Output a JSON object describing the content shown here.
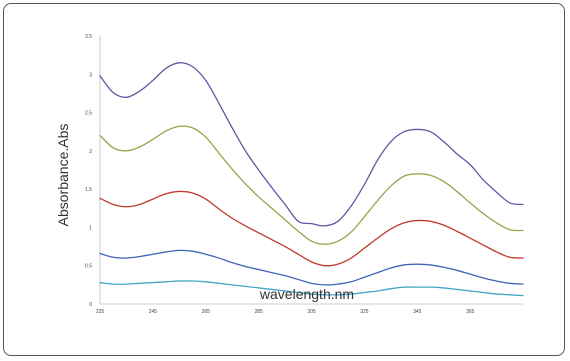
{
  "chart_data": {
    "type": "line",
    "title": "",
    "xlabel": "wavelength.nm",
    "ylabel": "Absorbance.Abs",
    "xlim": [
      225,
      385
    ],
    "ylim": [
      0,
      3.5
    ],
    "x_ticks": [
      "225",
      "245",
      "265",
      "285",
      "305",
      "325",
      "345",
      "365"
    ],
    "y_ticks": [
      "0",
      "0.5",
      "1",
      "1.5",
      "2",
      "2.5",
      "3",
      "3.5"
    ],
    "grid": false,
    "x": [
      225,
      230,
      235,
      240,
      245,
      250,
      255,
      260,
      265,
      270,
      275,
      280,
      285,
      290,
      295,
      300,
      305,
      310,
      315,
      320,
      325,
      330,
      335,
      340,
      345,
      350,
      355,
      360,
      365,
      370,
      375,
      380,
      385
    ],
    "series": [
      {
        "color": "#5a5aa6",
        "values": [
          2.98,
          2.76,
          2.7,
          2.78,
          2.92,
          3.08,
          3.15,
          3.1,
          2.92,
          2.62,
          2.3,
          2.0,
          1.75,
          1.52,
          1.3,
          1.08,
          1.05,
          1.02,
          1.08,
          1.28,
          1.56,
          1.88,
          2.12,
          2.25,
          2.28,
          2.25,
          2.12,
          1.96,
          1.82,
          1.62,
          1.46,
          1.32,
          1.3
        ]
      },
      {
        "color": "#8ea84a",
        "values": [
          2.2,
          2.04,
          2.0,
          2.05,
          2.15,
          2.26,
          2.32,
          2.3,
          2.18,
          1.97,
          1.76,
          1.57,
          1.4,
          1.25,
          1.1,
          0.95,
          0.82,
          0.78,
          0.82,
          0.94,
          1.14,
          1.35,
          1.54,
          1.67,
          1.7,
          1.68,
          1.6,
          1.47,
          1.32,
          1.18,
          1.06,
          0.97,
          0.96
        ]
      },
      {
        "color": "#c0392b",
        "values": [
          1.38,
          1.3,
          1.27,
          1.3,
          1.37,
          1.44,
          1.47,
          1.45,
          1.37,
          1.24,
          1.12,
          1.02,
          0.93,
          0.84,
          0.75,
          0.65,
          0.55,
          0.5,
          0.52,
          0.6,
          0.73,
          0.86,
          0.98,
          1.06,
          1.09,
          1.08,
          1.03,
          0.95,
          0.86,
          0.77,
          0.68,
          0.61,
          0.6
        ]
      },
      {
        "color": "#3f64b8",
        "values": [
          0.66,
          0.61,
          0.6,
          0.62,
          0.65,
          0.68,
          0.7,
          0.69,
          0.65,
          0.6,
          0.54,
          0.49,
          0.45,
          0.41,
          0.37,
          0.32,
          0.27,
          0.25,
          0.26,
          0.29,
          0.35,
          0.41,
          0.47,
          0.51,
          0.52,
          0.51,
          0.48,
          0.44,
          0.39,
          0.34,
          0.3,
          0.27,
          0.26
        ]
      },
      {
        "color": "#3fa6c6",
        "values": [
          0.28,
          0.26,
          0.26,
          0.27,
          0.28,
          0.29,
          0.3,
          0.3,
          0.29,
          0.27,
          0.25,
          0.23,
          0.21,
          0.19,
          0.17,
          0.15,
          0.13,
          0.12,
          0.12,
          0.13,
          0.15,
          0.17,
          0.2,
          0.22,
          0.22,
          0.22,
          0.21,
          0.19,
          0.17,
          0.15,
          0.13,
          0.12,
          0.11
        ]
      }
    ]
  }
}
